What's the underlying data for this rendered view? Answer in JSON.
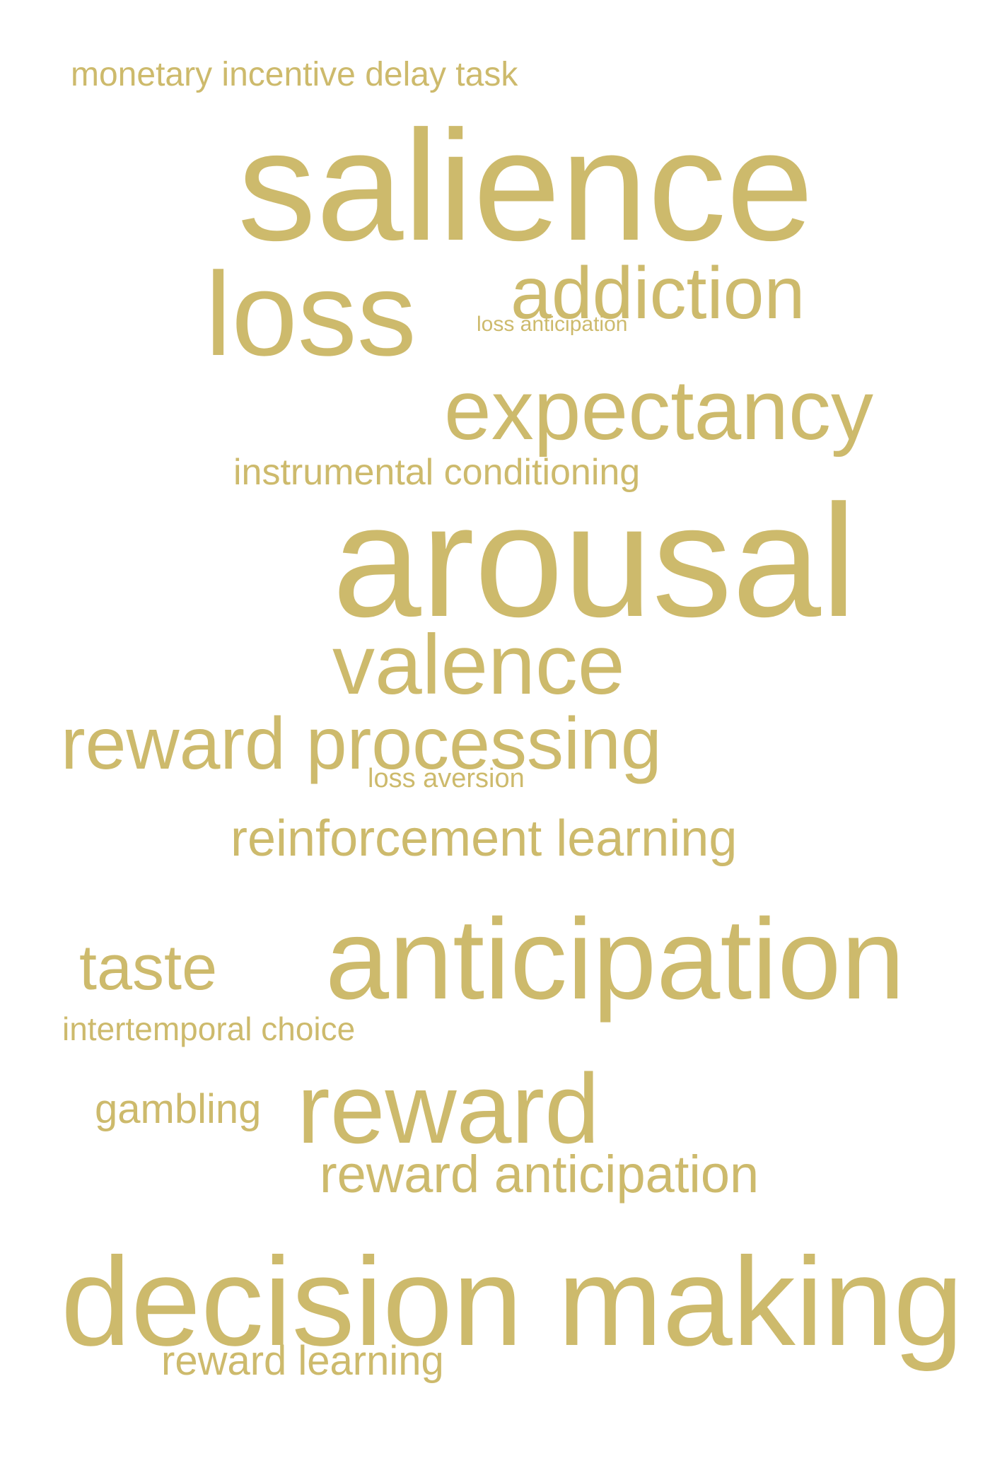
{
  "accent_color": "#cdba6c",
  "background_color": "#ffffff",
  "words": {
    "monetary_incentive_delay_task": "monetary incentive delay task",
    "salience": "salience",
    "loss": "loss",
    "addiction": "addiction",
    "loss_anticipation": "loss anticipation",
    "expectancy": "expectancy",
    "instrumental_conditioning": "instrumental conditioning",
    "arousal": "arousal",
    "valence": "valence",
    "reward_processing": "reward processing",
    "loss_aversion": "loss aversion",
    "reinforcement_learning": "reinforcement learning",
    "anticipation": "anticipation",
    "taste": "taste",
    "intertemporal_choice": "intertemporal choice",
    "gambling": "gambling",
    "reward": "reward",
    "reward_anticipation": "reward anticipation",
    "decision_making": "decision making",
    "reward_learning": "reward learning"
  }
}
